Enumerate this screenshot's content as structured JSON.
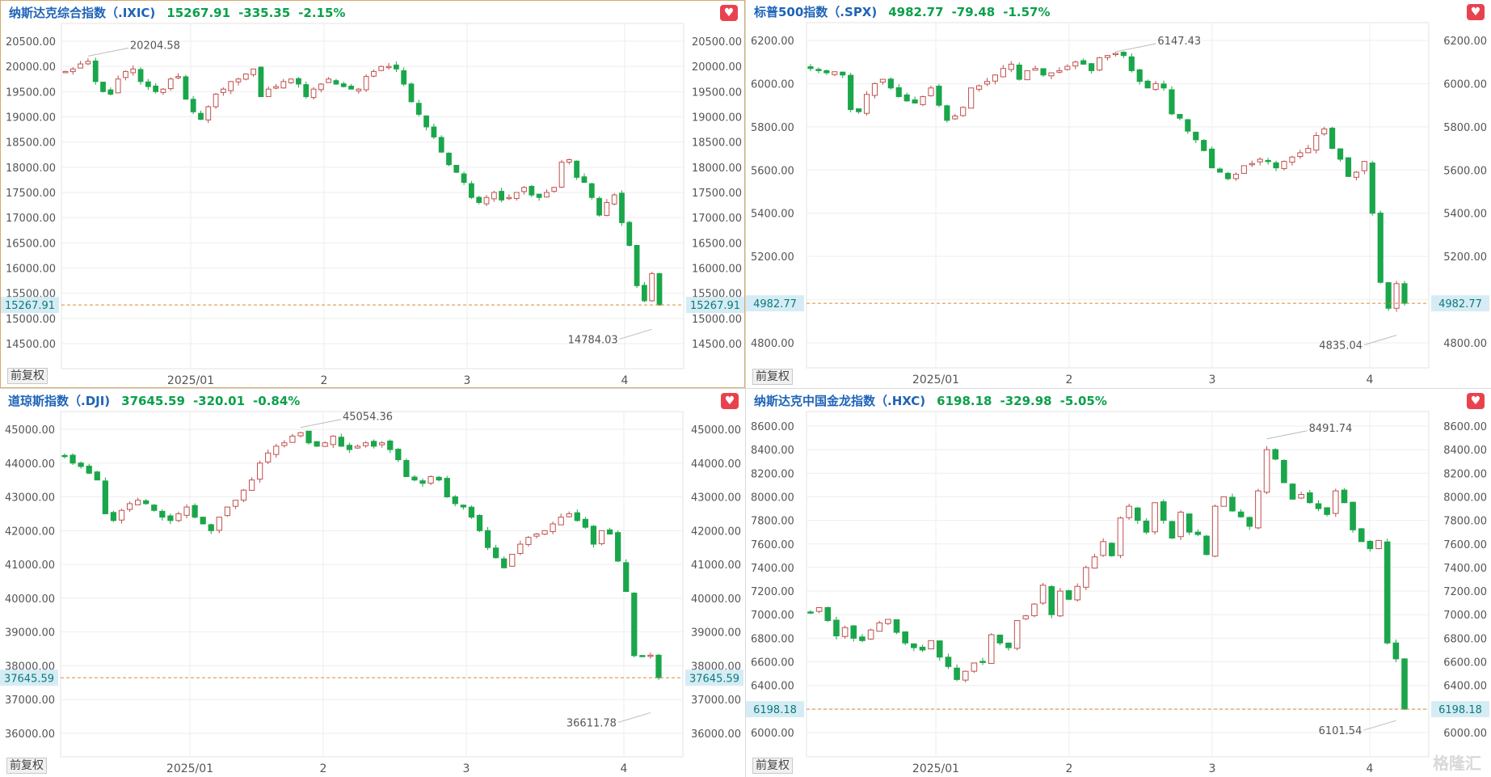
{
  "panels": [
    {
      "title": "纳斯达克综合指数（.IXIC)",
      "price": "15267.91",
      "change": "-335.35",
      "percent": "-2.15%",
      "adj_button": "前复权",
      "selected": true
    },
    {
      "title": "标普500指数（.SPX)",
      "price": "4982.77",
      "change": "-79.48",
      "percent": "-1.57%",
      "adj_button": "前复权",
      "selected": false
    },
    {
      "title": "道琼斯指数（.DJI)",
      "price": "37645.59",
      "change": "-320.01",
      "percent": "-0.84%",
      "adj_button": "前复权",
      "selected": false
    },
    {
      "title": "纳斯达克中国金龙指数（.HXC)",
      "price": "6198.18",
      "change": "-329.98",
      "percent": "-5.05%",
      "adj_button": "前复权",
      "selected": false
    }
  ],
  "watermark": "格隆汇",
  "icons": {
    "favorite": "heart-icon",
    "watermark_logo": "glh-logo-icon"
  },
  "colors": {
    "up": "#c0504d",
    "down": "#1aa64a",
    "last_price_line": "#d98a3a",
    "last_price_bg": "#d6ecf5",
    "title": "#1e63b8",
    "change": "#0aa04a"
  },
  "chart_data": [
    {
      "type": "candlestick",
      "title": "纳斯达克综合指数（.IXIC)",
      "x_ticks": [
        "2025/01",
        "2",
        "3",
        "4"
      ],
      "y_ticks": [
        "20500.00",
        "20000.00",
        "19500.00",
        "19000.00",
        "18500.00",
        "18000.00",
        "17500.00",
        "17000.00",
        "16500.00",
        "16000.00",
        "15500.00",
        "15000.00",
        "14500.00"
      ],
      "ylim": [
        14500,
        20500
      ],
      "last_price": 15267.91,
      "last_price_label": "15267.91",
      "high_label": "20204.58",
      "high_value": 20204.58,
      "low_label": "14784.03",
      "low_value": 14784.03,
      "closes": [
        19900,
        19950,
        20050,
        20100,
        19700,
        19500,
        19450,
        19750,
        19900,
        19950,
        19700,
        19600,
        19500,
        19550,
        19750,
        19800,
        19350,
        19100,
        18950,
        19200,
        19450,
        19550,
        19700,
        19750,
        19850,
        19950,
        19400,
        19550,
        19600,
        19700,
        19750,
        19650,
        19400,
        19550,
        19650,
        19750,
        19650,
        19600,
        19550,
        19550,
        19800,
        19900,
        20000,
        20000,
        19950,
        19650,
        19300,
        19050,
        18800,
        18600,
        18300,
        18050,
        17900,
        17700,
        17400,
        17300,
        17400,
        17500,
        17350,
        17400,
        17500,
        17600,
        17450,
        17400,
        17500,
        17600,
        18100,
        18150,
        17800,
        17700,
        17400,
        17050,
        17300,
        17450,
        16900,
        16450,
        15650,
        15350,
        15890,
        15268
      ],
      "grid": true
    },
    {
      "type": "candlestick",
      "title": "标普500指数（.SPX)",
      "x_ticks": [
        "2025/01",
        "2",
        "3",
        "4"
      ],
      "y_ticks": [
        "6200.00",
        "6000.00",
        "5800.00",
        "5600.00",
        "5400.00",
        "5200.00",
        "5000.00",
        "4800.00"
      ],
      "ylim": [
        4800,
        6200
      ],
      "last_price": 4982.77,
      "last_price_label": "4982.77",
      "high_label": "6147.43",
      "high_value": 6147.43,
      "low_label": "4835.04",
      "low_value": 4835.04,
      "closes": [
        6070,
        6060,
        6050,
        6055,
        6040,
        5880,
        5870,
        5950,
        6000,
        6020,
        5980,
        5940,
        5920,
        5910,
        5940,
        5980,
        5900,
        5830,
        5850,
        5890,
        5980,
        5990,
        6010,
        6040,
        6070,
        6090,
        6020,
        6060,
        6070,
        6040,
        6050,
        6060,
        6080,
        6100,
        6090,
        6060,
        6120,
        6130,
        6140,
        6130,
        6060,
        6010,
        5980,
        6000,
        5980,
        5860,
        5840,
        5780,
        5740,
        5690,
        5610,
        5590,
        5560,
        5580,
        5620,
        5630,
        5650,
        5640,
        5610,
        5640,
        5660,
        5680,
        5700,
        5760,
        5790,
        5700,
        5650,
        5570,
        5590,
        5640,
        5400,
        5080,
        4960,
        5074,
        4983
      ],
      "grid": true
    },
    {
      "type": "candlestick",
      "title": "道琼斯指数（.DJI)",
      "x_ticks": [
        "2025/01",
        "2",
        "3",
        "4"
      ],
      "y_ticks": [
        "45000.00",
        "44000.00",
        "43000.00",
        "42000.00",
        "41000.00",
        "40000.00",
        "39000.00",
        "38000.00",
        "37000.00",
        "36000.00"
      ],
      "ylim": [
        36000,
        45000
      ],
      "last_price": 37645.59,
      "last_price_label": "37645.59",
      "high_label": "45054.36",
      "high_value": 45054.36,
      "low_label": "36611.78",
      "low_value": 36611.78,
      "closes": [
        44200,
        44000,
        43900,
        43700,
        43500,
        42500,
        42300,
        42600,
        42800,
        42900,
        42800,
        42600,
        42400,
        42300,
        42500,
        42700,
        42400,
        42200,
        42000,
        42400,
        42700,
        42900,
        43200,
        43500,
        44000,
        44300,
        44500,
        44600,
        44800,
        44900,
        44600,
        44500,
        44600,
        44800,
        44500,
        44400,
        44500,
        44600,
        44500,
        44600,
        44400,
        44100,
        43600,
        43500,
        43400,
        43600,
        43500,
        43000,
        42800,
        42700,
        42400,
        42000,
        41500,
        41200,
        40900,
        41300,
        41600,
        41800,
        41900,
        42000,
        42200,
        42400,
        42500,
        42300,
        42100,
        41600,
        42000,
        41900,
        41100,
        40200,
        38300,
        38300,
        38314,
        37646
      ],
      "grid": true
    },
    {
      "type": "candlestick",
      "title": "纳斯达克中国金龙指数（.HXC)",
      "x_ticks": [
        "2025/01",
        "2",
        "3",
        "4"
      ],
      "y_ticks": [
        "8600.00",
        "8400.00",
        "8200.00",
        "8000.00",
        "7800.00",
        "7600.00",
        "7400.00",
        "7200.00",
        "7000.00",
        "6800.00",
        "6600.00",
        "6400.00",
        "6200.00",
        "6000.00"
      ],
      "ylim": [
        6000,
        8600
      ],
      "last_price": 6198.18,
      "last_price_label": "6198.18",
      "high_label": "8491.74",
      "high_value": 8491.74,
      "low_label": "6101.54",
      "low_value": 6101.54,
      "closes": [
        7020,
        7060,
        6950,
        6820,
        6890,
        6800,
        6780,
        6870,
        6930,
        6960,
        6850,
        6760,
        6720,
        6700,
        6780,
        6640,
        6560,
        6450,
        6520,
        6590,
        6600,
        6830,
        6760,
        6720,
        6950,
        6990,
        7090,
        7250,
        7000,
        7200,
        7130,
        7240,
        7400,
        7490,
        7620,
        7500,
        7820,
        7920,
        7800,
        7700,
        7950,
        7800,
        7650,
        7870,
        7700,
        7680,
        7510,
        7920,
        8000,
        7880,
        7830,
        7750,
        8050,
        8400,
        8320,
        8120,
        7980,
        8020,
        7950,
        7900,
        7850,
        8050,
        7950,
        7720,
        7620,
        7560,
        7630,
        6760,
        6625,
        6198
      ],
      "grid": true
    }
  ]
}
